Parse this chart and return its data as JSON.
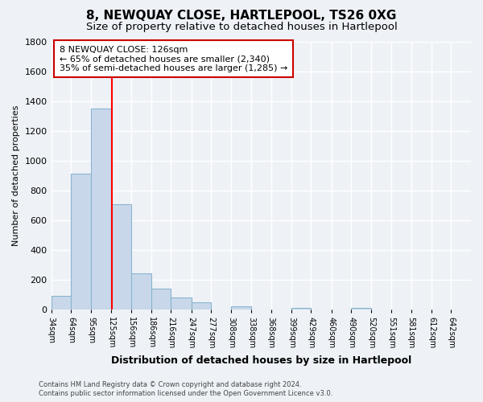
{
  "title": "8, NEWQUAY CLOSE, HARTLEPOOL, TS26 0XG",
  "subtitle": "Size of property relative to detached houses in Hartlepool",
  "bar_labels": [
    "34sqm",
    "64sqm",
    "95sqm",
    "125sqm",
    "156sqm",
    "186sqm",
    "216sqm",
    "247sqm",
    "277sqm",
    "308sqm",
    "338sqm",
    "368sqm",
    "399sqm",
    "429sqm",
    "460sqm",
    "490sqm",
    "520sqm",
    "551sqm",
    "581sqm",
    "612sqm",
    "642sqm"
  ],
  "bar_values": [
    90,
    910,
    1350,
    705,
    245,
    140,
    80,
    50,
    0,
    25,
    0,
    0,
    10,
    0,
    0,
    10,
    0,
    0,
    0,
    0,
    0
  ],
  "bin_edges": [
    34,
    64,
    95,
    125,
    156,
    186,
    216,
    247,
    277,
    308,
    338,
    368,
    399,
    429,
    460,
    490,
    520,
    551,
    581,
    612,
    642,
    672
  ],
  "bar_color": "#c8d8ea",
  "bar_edge_color": "#8ab4d0",
  "property_line_x": 126,
  "property_line_color": "red",
  "ylabel": "Number of detached properties",
  "xlabel": "Distribution of detached houses by size in Hartlepool",
  "ylim": [
    0,
    1800
  ],
  "yticks": [
    0,
    200,
    400,
    600,
    800,
    1000,
    1200,
    1400,
    1600,
    1800
  ],
  "annotation_title": "8 NEWQUAY CLOSE: 126sqm",
  "annotation_line1": "← 65% of detached houses are smaller (2,340)",
  "annotation_line2": "35% of semi-detached houses are larger (1,285) →",
  "annotation_box_facecolor": "#ffffff",
  "annotation_box_edgecolor": "#cc0000",
  "footer_line1": "Contains HM Land Registry data © Crown copyright and database right 2024.",
  "footer_line2": "Contains public sector information licensed under the Open Government Licence v3.0.",
  "background_color": "#eef2f7",
  "grid_color": "#ffffff",
  "title_fontsize": 11,
  "subtitle_fontsize": 9.5
}
